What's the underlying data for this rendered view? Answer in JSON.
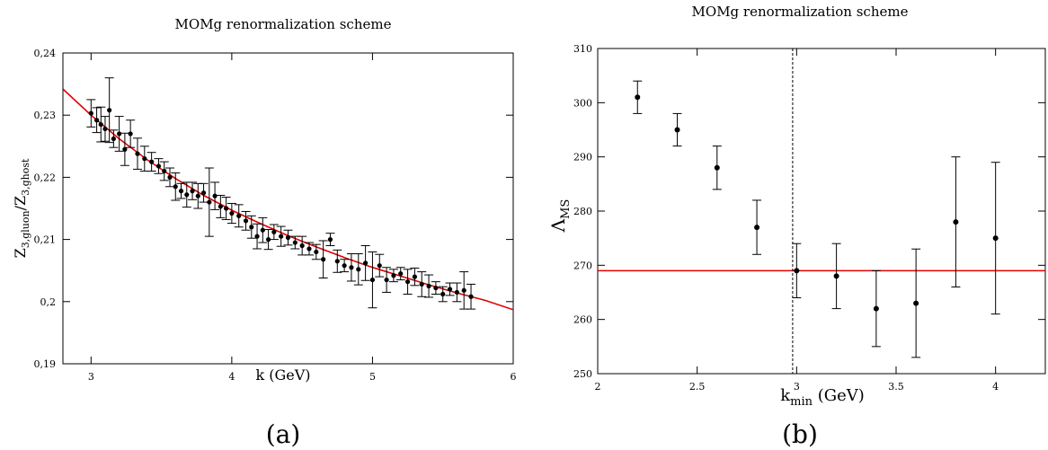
{
  "chart_data": [
    {
      "type": "scatter",
      "title": "MOMg renormalization scheme",
      "xlabel": "k (GeV)",
      "ylabel": "Z_{3,gluon}/Z_{3,ghost}",
      "ylabel_main": "Z",
      "ylabel_sub1": "3,gluon",
      "ylabel_slash": "/Z",
      "ylabel_sub2": "3,ghost",
      "panel_label": "(a)",
      "xlim": [
        2.8,
        6
      ],
      "ylim": [
        0.19,
        0.24
      ],
      "xticks": [
        3,
        4,
        5,
        6
      ],
      "xtick_labels": [
        "3",
        "4",
        "5",
        "6"
      ],
      "yticks": [
        0.19,
        0.2,
        0.21,
        0.22,
        0.23,
        0.24
      ],
      "ytick_labels": [
        "0,19",
        "0,2",
        "0,21",
        "0,22",
        "0,23",
        "0,24"
      ],
      "grid": false,
      "series": [
        {
          "marker": "dot",
          "color": "#000000",
          "x": [
            3.0,
            3.04,
            3.07,
            3.1,
            3.13,
            3.16,
            3.2,
            3.24,
            3.28,
            3.33,
            3.38,
            3.43,
            3.48,
            3.52,
            3.56,
            3.6,
            3.64,
            3.68,
            3.72,
            3.76,
            3.8,
            3.84,
            3.88,
            3.92,
            3.96,
            4.0,
            4.05,
            4.1,
            4.14,
            4.18,
            4.22,
            4.26,
            4.3,
            4.35,
            4.4,
            4.45,
            4.5,
            4.55,
            4.6,
            4.65,
            4.7,
            4.75,
            4.8,
            4.85,
            4.9,
            4.95,
            5.0,
            5.05,
            5.1,
            5.15,
            5.2,
            5.25,
            5.3,
            5.35,
            5.4,
            5.45,
            5.5,
            5.55,
            5.6,
            5.65,
            5.7
          ],
          "y": [
            0.2303,
            0.2292,
            0.2285,
            0.2278,
            0.2308,
            0.2262,
            0.227,
            0.2245,
            0.227,
            0.2238,
            0.223,
            0.2225,
            0.2218,
            0.221,
            0.22,
            0.2185,
            0.2178,
            0.2172,
            0.2178,
            0.217,
            0.2175,
            0.216,
            0.217,
            0.2153,
            0.215,
            0.2142,
            0.2138,
            0.213,
            0.212,
            0.2105,
            0.2115,
            0.21,
            0.2112,
            0.2105,
            0.2103,
            0.2095,
            0.209,
            0.2085,
            0.208,
            0.2068,
            0.21,
            0.2065,
            0.2058,
            0.2055,
            0.2052,
            0.2062,
            0.2035,
            0.2058,
            0.2035,
            0.2042,
            0.2045,
            0.2032,
            0.204,
            0.2028,
            0.2025,
            0.2022,
            0.2012,
            0.202,
            0.2015,
            0.2018,
            0.2008
          ],
          "err": [
            0.0022,
            0.002,
            0.0028,
            0.002,
            0.0052,
            0.0014,
            0.0028,
            0.0026,
            0.0022,
            0.0025,
            0.002,
            0.0015,
            0.0012,
            0.0015,
            0.0015,
            0.0022,
            0.0012,
            0.002,
            0.0014,
            0.002,
            0.0015,
            0.0055,
            0.0022,
            0.0018,
            0.0018,
            0.0016,
            0.0018,
            0.0015,
            0.0018,
            0.002,
            0.002,
            0.0016,
            0.0012,
            0.0016,
            0.0012,
            0.001,
            0.0015,
            0.001,
            0.0012,
            0.003,
            0.001,
            0.0018,
            0.001,
            0.0022,
            0.0025,
            0.0028,
            0.0045,
            0.0018,
            0.002,
            0.001,
            0.001,
            0.002,
            0.0014,
            0.002,
            0.0018,
            0.001,
            0.0012,
            0.001,
            0.0015,
            0.003,
            0.002
          ]
        },
        {
          "type": "line",
          "color": "#e00000",
          "x": [
            2.8,
            3.0,
            3.2,
            3.4,
            3.6,
            3.8,
            4.0,
            4.2,
            4.4,
            4.6,
            4.8,
            5.0,
            5.2,
            5.4,
            5.6,
            5.8,
            6.0
          ],
          "y": [
            0.2342,
            0.23,
            0.2262,
            0.2228,
            0.2198,
            0.2171,
            0.2147,
            0.2126,
            0.2106,
            0.2088,
            0.2071,
            0.2055,
            0.2041,
            0.2027,
            0.2014,
            0.2002,
            0.1987
          ]
        }
      ]
    },
    {
      "type": "scatter",
      "title": "MOMg renormalization scheme",
      "xlabel": "k_min (GeV)",
      "xlabel_main": "k",
      "xlabel_sub": "min",
      "xlabel_rest": " (GeV)",
      "ylabel": "Λ_MS",
      "ylabel_main": "Λ",
      "ylabel_sub": "MS",
      "panel_label": "(b)",
      "xlim": [
        2,
        4.25
      ],
      "ylim": [
        250,
        310
      ],
      "xticks": [
        2,
        2.5,
        3,
        3.5,
        4
      ],
      "xtick_labels": [
        "2",
        "2.5",
        "3",
        "3.5",
        "4"
      ],
      "yticks": [
        250,
        260,
        270,
        280,
        290,
        300,
        310
      ],
      "ytick_labels": [
        "250",
        "260",
        "270",
        "280",
        "290",
        "300",
        "310"
      ],
      "grid": false,
      "series": [
        {
          "marker": "dot",
          "color": "#000000",
          "x": [
            2.2,
            2.4,
            2.6,
            2.8,
            3.0,
            3.2,
            3.4,
            3.6,
            3.8,
            4.0
          ],
          "y": [
            301,
            295,
            288,
            277,
            269,
            268,
            262,
            263,
            278,
            275
          ],
          "err_low": [
            3,
            3,
            4,
            5,
            5,
            6,
            7,
            10,
            12,
            14
          ],
          "err_high": [
            3,
            3,
            4,
            5,
            5,
            6,
            7,
            10,
            12,
            14
          ]
        }
      ],
      "hline": {
        "y": 269,
        "color": "#e00000"
      },
      "vline": {
        "x": 2.98,
        "style": "dashed",
        "color": "#000000"
      }
    }
  ]
}
